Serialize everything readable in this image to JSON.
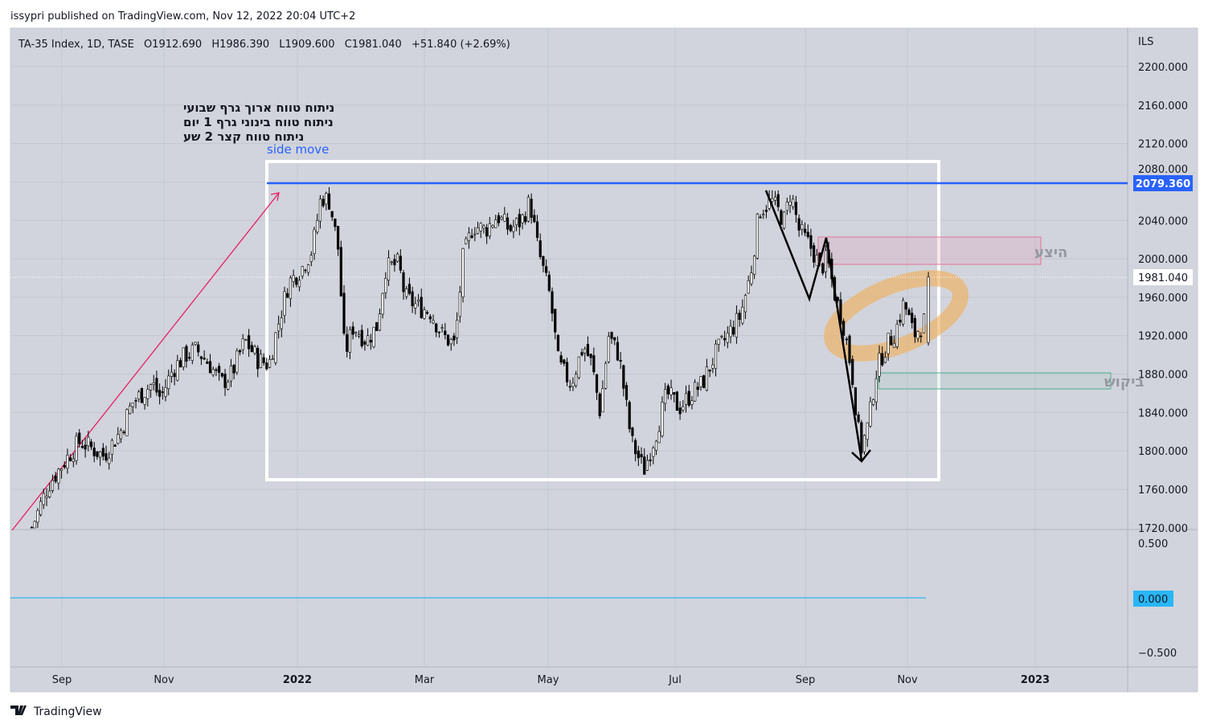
{
  "header": {
    "published": "issypri published on TradingView.com, Nov 12, 2022 20:04 UTC+2"
  },
  "legend": {
    "symbol": "TA-35 Index, 1D, TASE",
    "open": "O1912.690",
    "high": "H1986.390",
    "low": "L1909.600",
    "close": "C1981.040",
    "change": "+51.840 (+2.69%)"
  },
  "notes": [
    "ניתוח טווח ארוך גרף שבועי",
    "ניתוח טווח בינוני גרף 1 יום",
    "ניתוח טווח קצר 2 שע"
  ],
  "annotations": {
    "side_move": "side move",
    "supply": "היצע",
    "demand": "ביקוש",
    "resistance_label": "2079.360",
    "last_price_label": "1981.040"
  },
  "currency": "ILS",
  "indicator": {
    "ticks": [
      "0.500",
      "0.000",
      "−0.500"
    ],
    "value_label": "0.000"
  },
  "footer": {
    "brand": "TradingView"
  },
  "colors": {
    "background": "#d1d4dc",
    "resistance": "#2962ff",
    "trendline": "#e91e63",
    "supply": "#e57399",
    "demand": "#4caf8f",
    "highlight": "#f0b060",
    "indicator_line": "#29b6f6"
  },
  "chart_data": {
    "type": "candlestick",
    "title": "TA-35 Index, 1D, TASE",
    "ylim": [
      1720,
      2220
    ],
    "yticks": [
      "2200.000",
      "2160.000",
      "2120.000",
      "2080.000",
      "2040.000",
      "2000.000",
      "1960.000",
      "1920.000",
      "1880.000",
      "1840.000",
      "1800.000",
      "1760.000",
      "1720.000"
    ],
    "xticks": [
      {
        "label": "Sep",
        "date": "2021-09-01"
      },
      {
        "label": "Nov",
        "date": "2021-11-01"
      },
      {
        "label": "2022",
        "date": "2022-01-01"
      },
      {
        "label": "Mar",
        "date": "2022-03-01"
      },
      {
        "label": "May",
        "date": "2022-05-01"
      },
      {
        "label": "Jul",
        "date": "2022-07-01"
      },
      {
        "label": "Sep",
        "date": "2022-09-01"
      },
      {
        "label": "Nov",
        "date": "2022-11-01"
      },
      {
        "label": "2023",
        "date": "2023-01-01"
      }
    ],
    "last_bar": {
      "open": 1912.69,
      "high": 1986.39,
      "low": 1909.6,
      "close": 1981.04
    },
    "resistance_level": 2079.36,
    "closes": [
      [
        "2021-08-14",
        1720
      ],
      [
        "2021-08-24",
        1765
      ],
      [
        "2021-09-07",
        1800
      ],
      [
        "2021-09-12",
        1810
      ],
      [
        "2021-09-26",
        1795
      ],
      [
        "2021-10-06",
        1820
      ],
      [
        "2021-10-13",
        1850
      ],
      [
        "2021-10-25",
        1870
      ],
      [
        "2021-10-30",
        1855
      ],
      [
        "2021-11-05",
        1885
      ],
      [
        "2021-11-11",
        1900
      ],
      [
        "2021-11-16",
        1905
      ],
      [
        "2021-11-22",
        1890
      ],
      [
        "2021-11-27",
        1870
      ],
      [
        "2021-12-02",
        1880
      ],
      [
        "2021-12-08",
        1915
      ],
      [
        "2021-12-14",
        1895
      ],
      [
        "2021-12-19",
        1890
      ],
      [
        "2021-12-23",
        1930
      ],
      [
        "2021-12-28",
        1975
      ],
      [
        "2022-01-03",
        1990
      ],
      [
        "2022-01-08",
        2010
      ],
      [
        "2022-01-12",
        2065
      ],
      [
        "2022-01-16",
        2060
      ],
      [
        "2022-01-20",
        2010
      ],
      [
        "2022-01-23",
        1900
      ],
      [
        "2022-01-27",
        1930
      ],
      [
        "2022-02-02",
        1915
      ],
      [
        "2022-02-07",
        1930
      ],
      [
        "2022-02-11",
        1990
      ],
      [
        "2022-02-17",
        1995
      ],
      [
        "2022-02-20",
        1960
      ],
      [
        "2022-02-26",
        1950
      ],
      [
        "2022-03-04",
        1945
      ],
      [
        "2022-03-10",
        1920
      ],
      [
        "2022-03-16",
        1910
      ],
      [
        "2022-03-20",
        2000
      ],
      [
        "2022-03-25",
        2035
      ],
      [
        "2022-03-31",
        2030
      ],
      [
        "2022-04-06",
        2045
      ],
      [
        "2022-04-12",
        2030
      ],
      [
        "2022-04-18",
        2040
      ],
      [
        "2022-04-22",
        2060
      ],
      [
        "2022-04-26",
        2010
      ],
      [
        "2022-05-02",
        1960
      ],
      [
        "2022-05-06",
        1890
      ],
      [
        "2022-05-12",
        1870
      ],
      [
        "2022-05-18",
        1910
      ],
      [
        "2022-05-22",
        1890
      ],
      [
        "2022-05-26",
        1840
      ],
      [
        "2022-05-30",
        1920
      ],
      [
        "2022-06-04",
        1900
      ],
      [
        "2022-06-10",
        1810
      ],
      [
        "2022-06-16",
        1780
      ],
      [
        "2022-06-22",
        1820
      ],
      [
        "2022-06-27",
        1860
      ],
      [
        "2022-07-03",
        1845
      ],
      [
        "2022-07-09",
        1860
      ],
      [
        "2022-07-14",
        1870
      ],
      [
        "2022-07-20",
        1900
      ],
      [
        "2022-07-26",
        1920
      ],
      [
        "2022-08-01",
        1940
      ],
      [
        "2022-08-06",
        1985
      ],
      [
        "2022-08-10",
        2050
      ],
      [
        "2022-08-16",
        2060
      ],
      [
        "2022-08-22",
        2040
      ],
      [
        "2022-08-25",
        2070
      ],
      [
        "2022-08-29",
        2030
      ],
      [
        "2022-09-05",
        2010
      ],
      [
        "2022-09-10",
        1990
      ],
      [
        "2022-09-14",
        2000
      ],
      [
        "2022-09-19",
        1960
      ],
      [
        "2022-09-24",
        1930
      ],
      [
        "2022-09-29",
        1880
      ],
      [
        "2022-10-04",
        1800
      ],
      [
        "2022-10-09",
        1830
      ],
      [
        "2022-10-13",
        1880
      ],
      [
        "2022-10-18",
        1905
      ],
      [
        "2022-10-25",
        1925
      ],
      [
        "2022-10-30",
        1955
      ],
      [
        "2022-11-04",
        1920
      ],
      [
        "2022-11-09",
        1935
      ],
      [
        "2022-11-11",
        1981.04
      ]
    ]
  }
}
